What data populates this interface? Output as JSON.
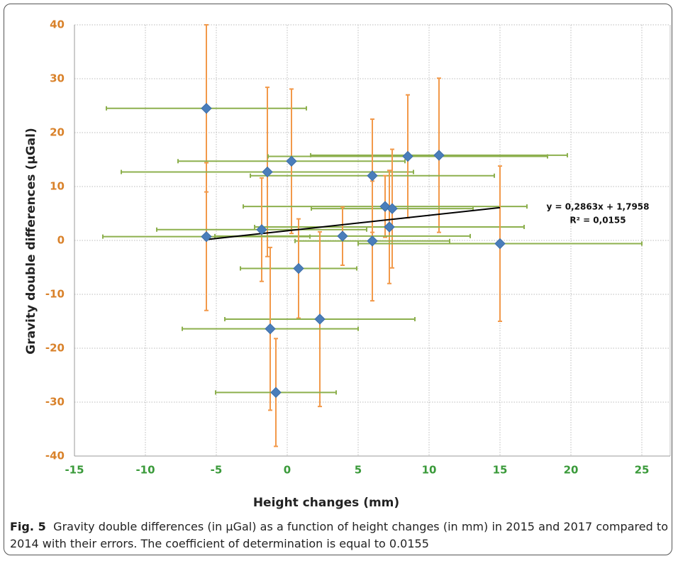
{
  "chart_data": {
    "type": "scatter",
    "xlabel": "Height changes (mm)",
    "ylabel": "Gravity double differences  (µGal)",
    "x": [
      -5.7,
      -5.7,
      -1.4,
      0.3,
      8.5,
      10.7,
      6,
      6.9,
      7.4,
      -1.8,
      7.2,
      3.9,
      6,
      15,
      0.8,
      2.3,
      -1.2,
      -0.8
    ],
    "values": [
      24.5,
      0.7,
      12.7,
      14.7,
      15.6,
      15.8,
      12,
      6.3,
      5.9,
      2,
      2.5,
      0.8,
      -0.1,
      -0.6,
      -5.2,
      -14.6,
      -16.4,
      -28.2
    ],
    "xerr": [
      7.05,
      7.3,
      10.3,
      8,
      9.85,
      9.05,
      8.6,
      10,
      5.7,
      7.4,
      9.5,
      9,
      5.45,
      10,
      4.1,
      6.7,
      6.2,
      4.25
    ],
    "yerr": [
      15.5,
      13.7,
      15.7,
      13.4,
      11.4,
      14.3,
      10.5,
      5.7,
      11,
      9.6,
      10.5,
      5.4,
      11.1,
      14.4,
      9.2,
      16.2,
      15.1,
      10
    ],
    "color": "#4a7ebb",
    "xerr_color": "#8db04e",
    "yerr_color": "#f2994a",
    "xlim": [
      -15,
      27
    ],
    "ylim": [
      -40,
      40
    ],
    "xticks": [
      -15,
      -10,
      -5,
      0,
      5,
      10,
      15,
      20,
      25
    ],
    "yticks": [
      -40,
      -30,
      -20,
      -10,
      0,
      10,
      20,
      30,
      40
    ],
    "xtick_color": "#3a9a3a",
    "ytick_color": "#d9822b",
    "grid": true,
    "trendline": {
      "slope": 0.2863,
      "intercept": 1.7958,
      "equation": "y = 0,2863x + 1,7958",
      "r2": "R² = 0,0155"
    }
  },
  "caption": {
    "label": "Fig. 5",
    "text": "Gravity double differences (in µGal) as a function of height changes (in mm) in 2015 and 2017 compared to 2014 with their errors. The coefficient of determination is equal to 0.0155"
  }
}
